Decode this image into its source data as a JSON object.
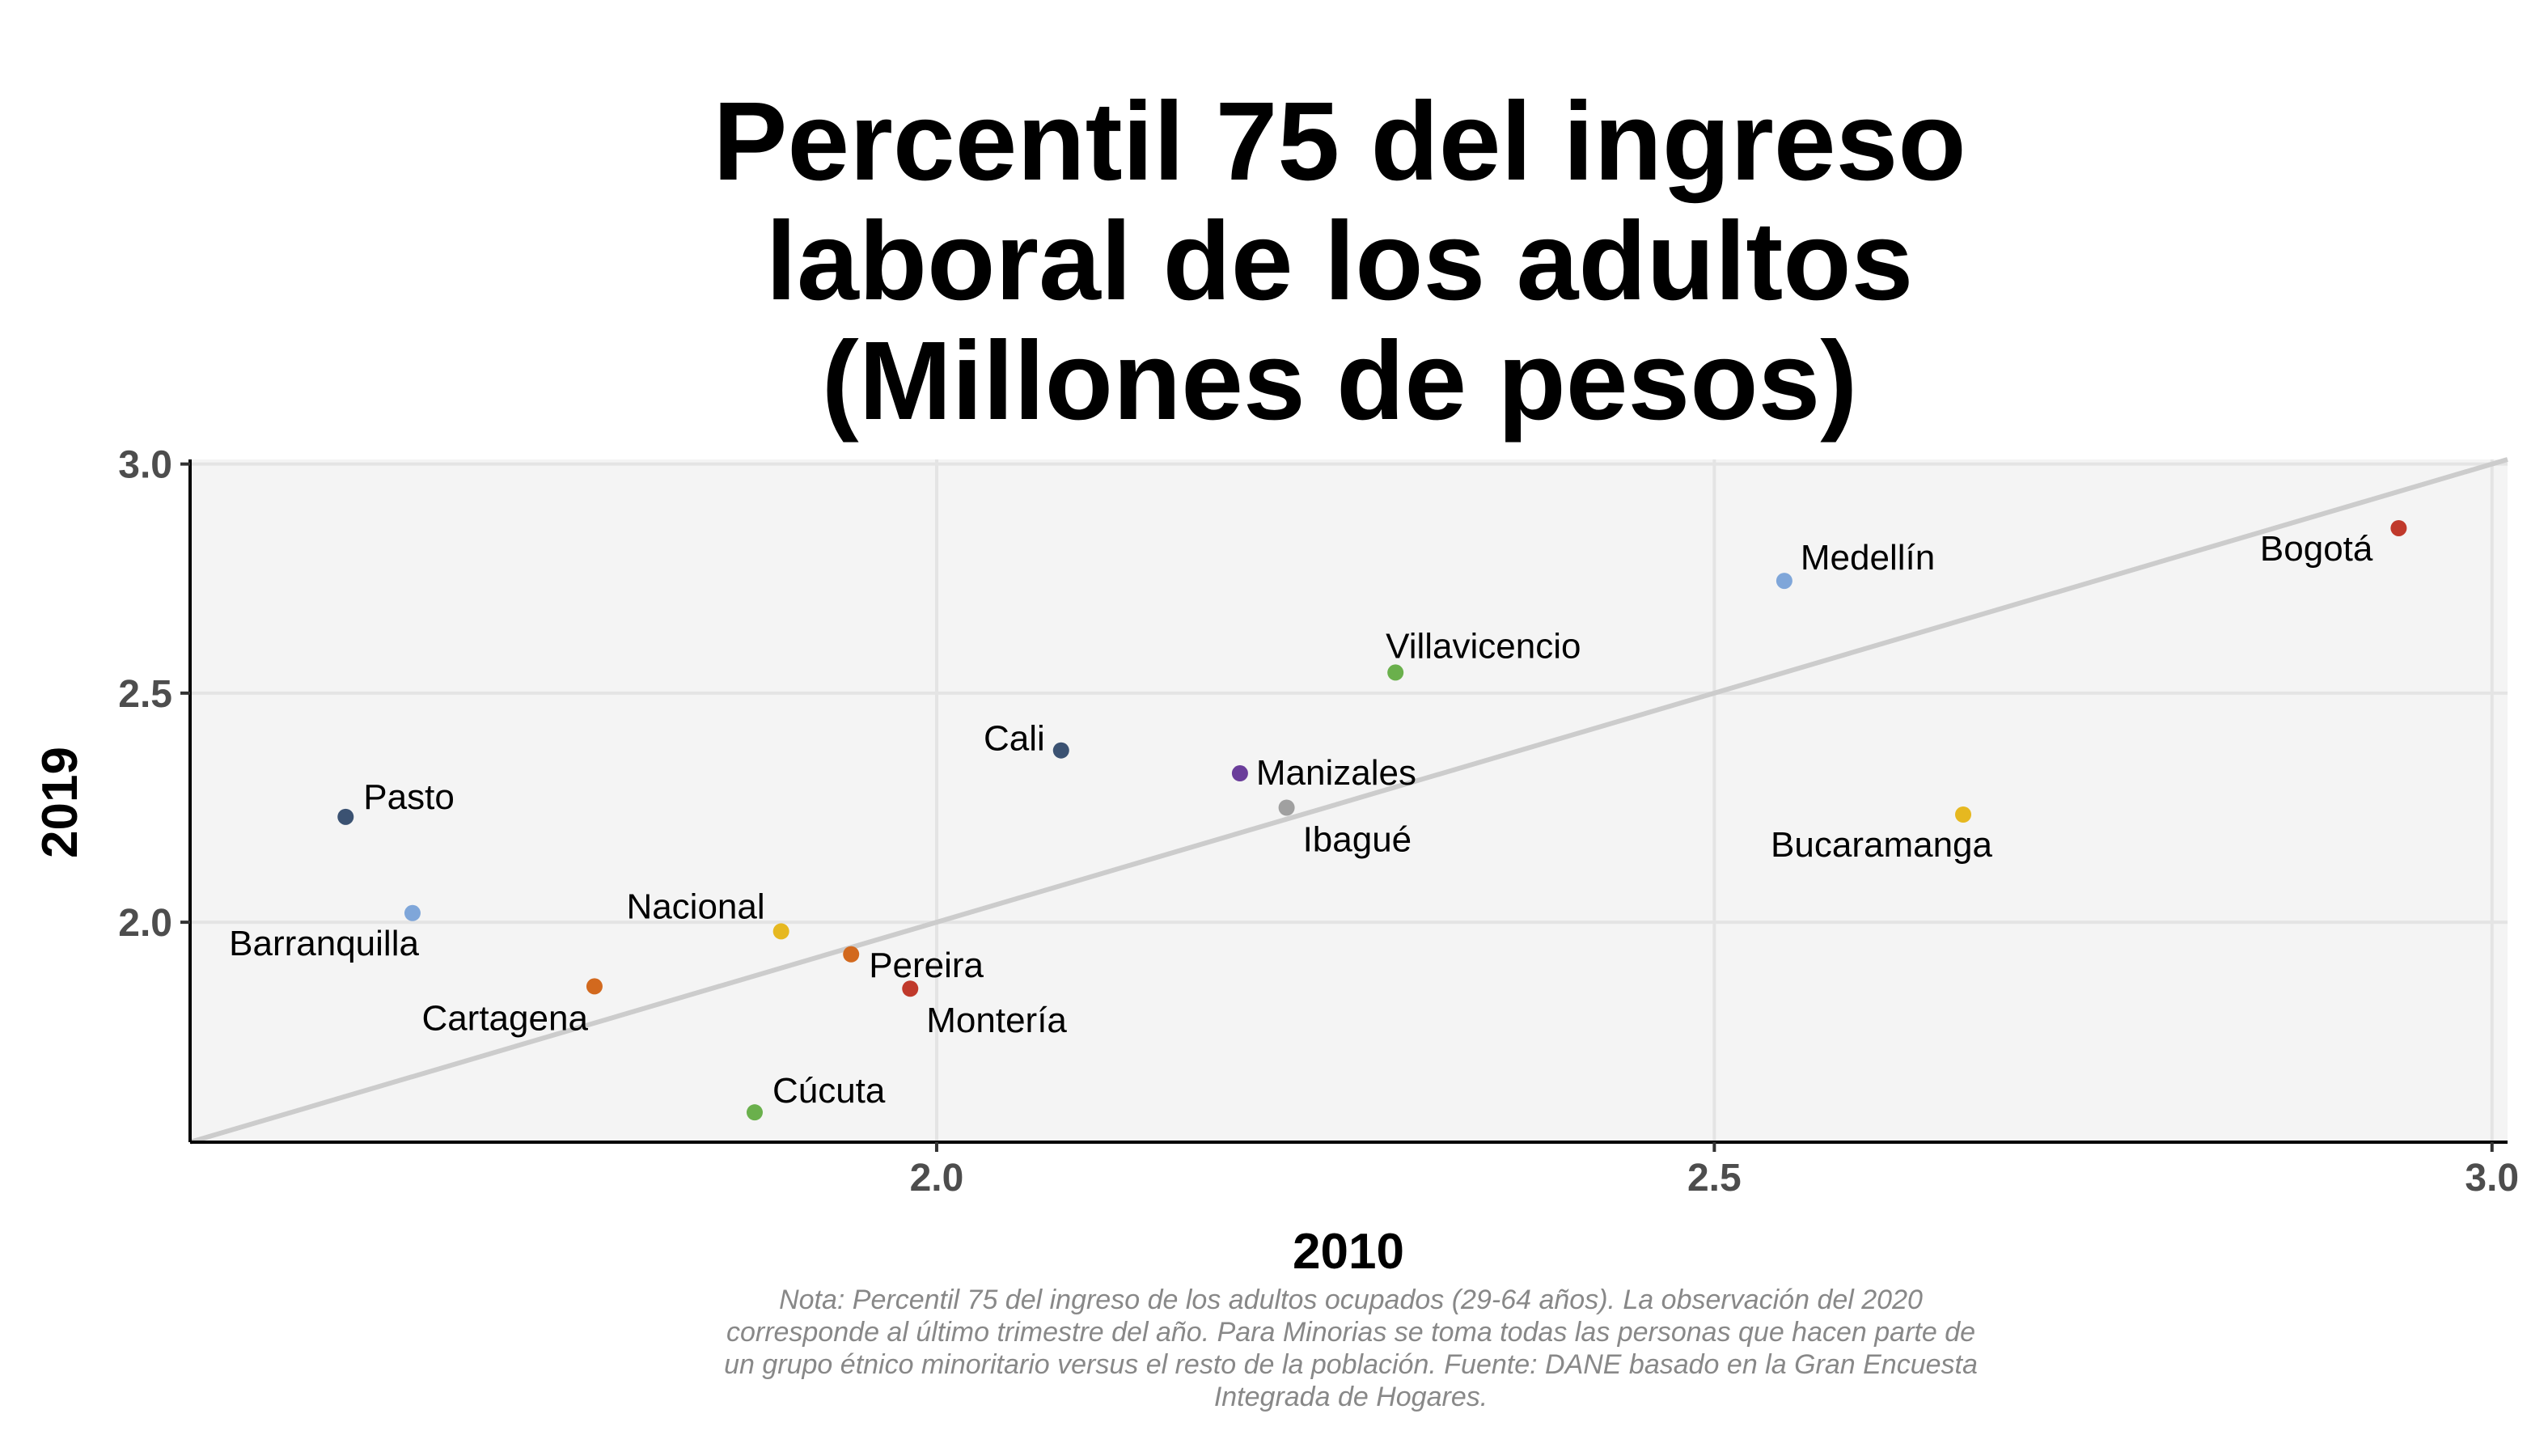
{
  "chart_data": {
    "type": "scatter",
    "title": [
      "Percentil 75 del ingreso",
      "laboral de los adultos",
      "(Millones de pesos)"
    ],
    "xlabel": "2010",
    "ylabel": "2019",
    "xlim": [
      1.52,
      3.01
    ],
    "ylim": [
      1.52,
      3.01
    ],
    "x_ticks": [
      2.0,
      2.5,
      3.0
    ],
    "y_ticks": [
      2.0,
      2.5,
      3.0
    ],
    "x_tick_labels": [
      "2.0",
      "2.5",
      "3.0"
    ],
    "y_tick_labels": [
      "2.0",
      "2.5",
      "3.0"
    ],
    "grid": true,
    "reference_line": "y = x",
    "points": [
      {
        "label": "Bogotá",
        "x": 2.94,
        "y": 2.86,
        "color": "#c0392b"
      },
      {
        "label": "Medellín",
        "x": 2.545,
        "y": 2.745,
        "color": "#7fa6d9"
      },
      {
        "label": "Villavicencio",
        "x": 2.295,
        "y": 2.545,
        "color": "#6ab04c"
      },
      {
        "label": "Cali",
        "x": 2.08,
        "y": 2.375,
        "color": "#3b5272"
      },
      {
        "label": "Manizales",
        "x": 2.195,
        "y": 2.325,
        "color": "#6a3d9a"
      },
      {
        "label": "Ibagué",
        "x": 2.225,
        "y": 2.25,
        "color": "#a0a0a0"
      },
      {
        "label": "Bucaramanga",
        "x": 2.66,
        "y": 2.235,
        "color": "#e6b820"
      },
      {
        "label": "Pasto",
        "x": 1.62,
        "y": 2.23,
        "color": "#3b5272"
      },
      {
        "label": "Barranquilla",
        "x": 1.663,
        "y": 2.02,
        "color": "#7fa6d9"
      },
      {
        "label": "Nacional",
        "x": 1.9,
        "y": 1.98,
        "color": "#e6b820"
      },
      {
        "label": "Pereira",
        "x": 1.945,
        "y": 1.93,
        "color": "#d2691e"
      },
      {
        "label": "Cartagena",
        "x": 1.78,
        "y": 1.86,
        "color": "#d2691e"
      },
      {
        "label": "Montería",
        "x": 1.983,
        "y": 1.855,
        "color": "#c0392b"
      },
      {
        "label": "Cúcuta",
        "x": 1.883,
        "y": 1.585,
        "color": "#6ab04c"
      }
    ],
    "note": [
      "Nota: Percentil 75 del ingreso de los adultos ocupados (29-64 años). La observación del 2020",
      "corresponde al último trimestre del año. Para Minorias se toma todas las personas que hacen parte de",
      "un grupo étnico minoritario versus el resto de la población. Fuente: DANE basado en la Gran Encuesta",
      "Integrada de Hogares."
    ]
  }
}
